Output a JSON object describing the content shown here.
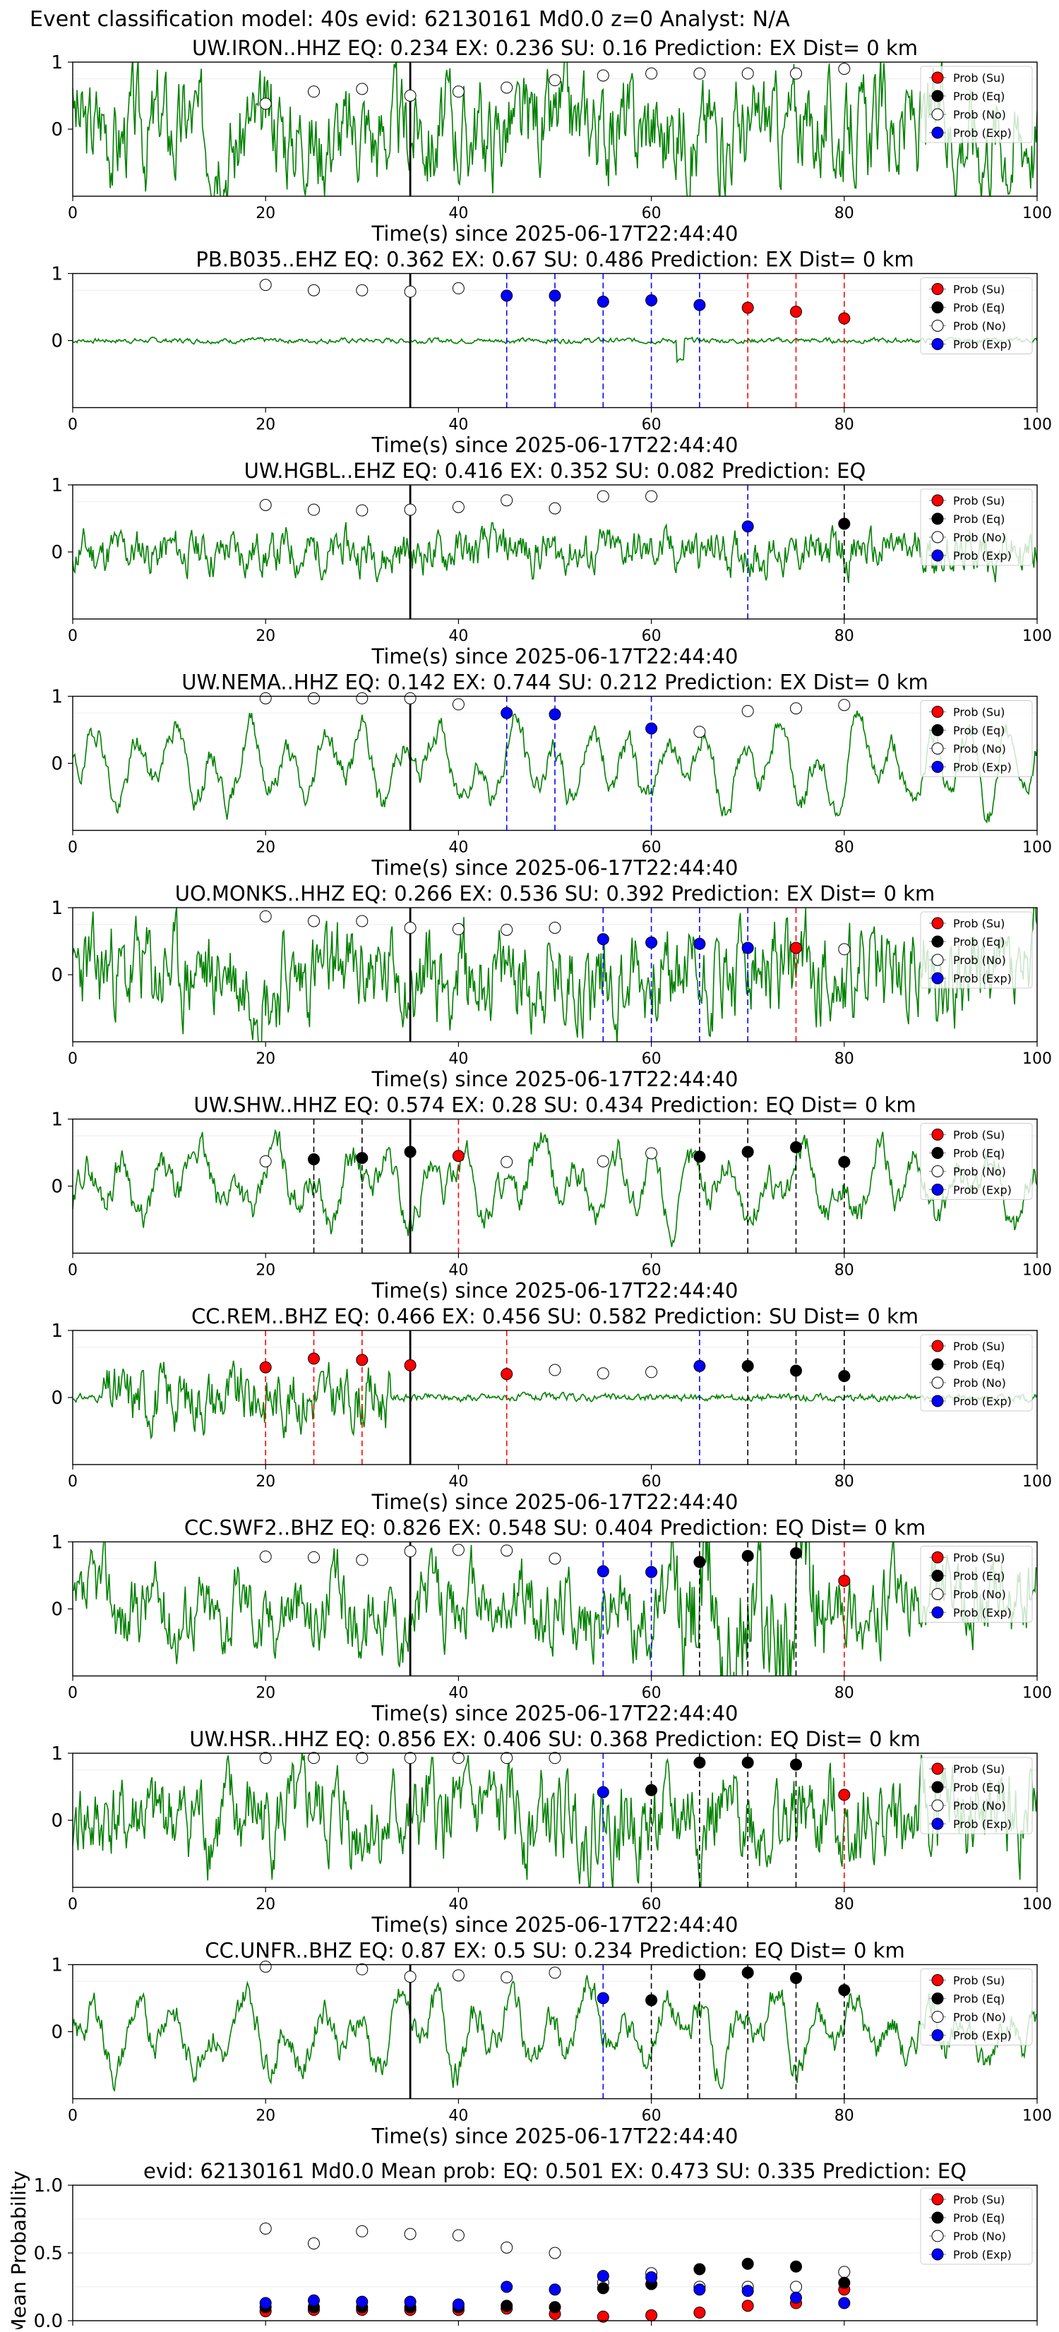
{
  "page_title": "Event classification model: 40s evid: 62130161 Md0.0 z=0 Analyst: N/A",
  "xlabel": "Time(s) since 2025-06-17T22:44:40",
  "legend": [
    "Prob (Su)",
    "Prob (Eq)",
    "Prob (No)",
    "Prob (Exp)"
  ],
  "colors": {
    "waveform": "#008000",
    "su": "#ff0000",
    "eq": "#000000",
    "no": "#ffffff",
    "exp": "#0000ff",
    "pick": "#000000"
  },
  "chart_data": [
    {
      "type": "line",
      "title": "UW.IRON..HHZ   EQ: 0.234  EX: 0.236  SU: 0.16   Prediction: EX    Dist= 0 km",
      "xlim": [
        0,
        100
      ],
      "ylim": [
        -1,
        1
      ],
      "xticks": [
        0,
        20,
        40,
        60,
        80,
        100
      ],
      "yticks": [
        "1",
        "0"
      ],
      "pick": 35,
      "amp": 0.85,
      "seed": 3,
      "mode": "noisy",
      "x": [
        20,
        25,
        30,
        35,
        40,
        45,
        50,
        55,
        60,
        65,
        70,
        75,
        80
      ],
      "class": [
        "no",
        "no",
        "no",
        "no",
        "no",
        "no",
        "no",
        "no",
        "no",
        "no",
        "no",
        "no",
        "no"
      ],
      "y": [
        0.38,
        0.56,
        0.6,
        0.5,
        0.56,
        0.62,
        0.73,
        0.8,
        0.83,
        0.83,
        0.83,
        0.83,
        0.9
      ],
      "vlines": []
    },
    {
      "type": "line",
      "title": "PB.B035..EHZ   EQ: 0.362  EX: 0.67  SU: 0.486   Prediction: EX    Dist= 0 km",
      "xlim": [
        0,
        100
      ],
      "ylim": [
        -1,
        1
      ],
      "xticks": [
        0,
        20,
        40,
        60,
        80,
        100
      ],
      "yticks": [
        "1",
        "0"
      ],
      "pick": 35,
      "amp": 0.12,
      "seed": 7,
      "mode": "quiet",
      "x": [
        20,
        25,
        30,
        35,
        40,
        45,
        50,
        55,
        60,
        65,
        70,
        75,
        80
      ],
      "class": [
        "no",
        "no",
        "no",
        "no",
        "no",
        "exp",
        "exp",
        "exp",
        "exp",
        "exp",
        "su",
        "su",
        "su"
      ],
      "y": [
        0.83,
        0.75,
        0.75,
        0.73,
        0.78,
        0.67,
        0.67,
        0.58,
        0.6,
        0.53,
        0.49,
        0.43,
        0.33
      ],
      "vlines": [
        {
          "x": 45,
          "c": "exp"
        },
        {
          "x": 50,
          "c": "exp"
        },
        {
          "x": 55,
          "c": "exp"
        },
        {
          "x": 60,
          "c": "exp"
        },
        {
          "x": 65,
          "c": "exp"
        },
        {
          "x": 70,
          "c": "su"
        },
        {
          "x": 75,
          "c": "su"
        },
        {
          "x": 80,
          "c": "su"
        }
      ]
    },
    {
      "type": "line",
      "title": "UW.HGBL..EHZ   EQ: 0.416  EX: 0.352  SU: 0.082   Prediction: EQ",
      "xlim": [
        0,
        100
      ],
      "ylim": [
        -1,
        1
      ],
      "xticks": [
        0,
        20,
        40,
        60,
        80,
        100
      ],
      "yticks": [
        "1",
        "0"
      ],
      "pick": 35,
      "amp": 0.35,
      "seed": 11,
      "mode": "noisy",
      "x": [
        20,
        25,
        30,
        35,
        40,
        45,
        50,
        55,
        60,
        70,
        80
      ],
      "class": [
        "no",
        "no",
        "no",
        "no",
        "no",
        "no",
        "no",
        "no",
        "no",
        "exp",
        "eq"
      ],
      "y": [
        0.7,
        0.63,
        0.62,
        0.63,
        0.67,
        0.77,
        0.65,
        0.83,
        0.83,
        0.38,
        0.42
      ],
      "vlines": [
        {
          "x": 70,
          "c": "exp"
        },
        {
          "x": 80,
          "c": "eq"
        }
      ]
    },
    {
      "type": "line",
      "title": "UW.NEMA..HHZ   EQ: 0.142  EX: 0.744  SU: 0.212   Prediction: EX    Dist= 0 km",
      "xlim": [
        0,
        100
      ],
      "ylim": [
        -1,
        1
      ],
      "xticks": [
        0,
        20,
        40,
        60,
        80,
        100
      ],
      "yticks": [
        "1",
        "0"
      ],
      "pick": 35,
      "amp": 0.9,
      "seed": 19,
      "mode": "smooth",
      "x": [
        20,
        25,
        30,
        35,
        40,
        45,
        50,
        60,
        65,
        70,
        75,
        80
      ],
      "class": [
        "no",
        "no",
        "no",
        "no",
        "no",
        "exp",
        "exp",
        "exp",
        "no",
        "no",
        "no",
        "no"
      ],
      "y": [
        0.97,
        0.97,
        0.97,
        0.97,
        0.88,
        0.75,
        0.73,
        0.52,
        0.47,
        0.78,
        0.82,
        0.87
      ],
      "vlines": [
        {
          "x": 45,
          "c": "exp"
        },
        {
          "x": 50,
          "c": "exp"
        },
        {
          "x": 60,
          "c": "exp"
        }
      ]
    },
    {
      "type": "line",
      "title": "UO.MONKS..HHZ   EQ: 0.266  EX: 0.536  SU: 0.392   Prediction: EX    Dist= 0 km",
      "xlim": [
        0,
        100
      ],
      "ylim": [
        -1,
        1
      ],
      "xticks": [
        0,
        20,
        40,
        60,
        80,
        100
      ],
      "yticks": [
        "1",
        "0"
      ],
      "pick": 35,
      "amp": 0.8,
      "seed": 23,
      "mode": "noisy",
      "x": [
        20,
        25,
        30,
        35,
        40,
        45,
        50,
        55,
        60,
        65,
        70,
        75,
        80
      ],
      "class": [
        "no",
        "no",
        "no",
        "no",
        "no",
        "no",
        "no",
        "exp",
        "exp",
        "exp",
        "exp",
        "su",
        "no"
      ],
      "y": [
        0.87,
        0.8,
        0.8,
        0.7,
        0.68,
        0.67,
        0.7,
        0.53,
        0.48,
        0.46,
        0.4,
        0.4,
        0.38
      ],
      "vlines": [
        {
          "x": 55,
          "c": "exp"
        },
        {
          "x": 60,
          "c": "exp"
        },
        {
          "x": 65,
          "c": "exp"
        },
        {
          "x": 70,
          "c": "exp"
        },
        {
          "x": 75,
          "c": "su"
        }
      ]
    },
    {
      "type": "line",
      "title": "UW.SHW..HHZ   EQ: 0.574  EX: 0.28  SU: 0.434   Prediction: EQ    Dist= 0 km",
      "xlim": [
        0,
        100
      ],
      "ylim": [
        -1,
        1
      ],
      "xticks": [
        0,
        20,
        40,
        60,
        80,
        100
      ],
      "yticks": [
        "1",
        "0"
      ],
      "pick": 35,
      "amp": 0.75,
      "seed": 29,
      "mode": "smooth2",
      "x": [
        20,
        25,
        30,
        35,
        40,
        45,
        55,
        60,
        65,
        70,
        75,
        80
      ],
      "class": [
        "no",
        "eq",
        "eq",
        "eq",
        "su",
        "no",
        "no",
        "no",
        "eq",
        "eq",
        "eq",
        "eq"
      ],
      "y": [
        0.37,
        0.4,
        0.42,
        0.51,
        0.45,
        0.36,
        0.37,
        0.49,
        0.44,
        0.51,
        0.58,
        0.36
      ],
      "vlines": [
        {
          "x": 25,
          "c": "eq"
        },
        {
          "x": 30,
          "c": "eq"
        },
        {
          "x": 40,
          "c": "su"
        },
        {
          "x": 65,
          "c": "eq"
        },
        {
          "x": 70,
          "c": "eq"
        },
        {
          "x": 75,
          "c": "eq"
        },
        {
          "x": 80,
          "c": "eq"
        }
      ]
    },
    {
      "type": "line",
      "title": "CC.REM..BHZ   EQ: 0.466  EX: 0.456  SU: 0.582   Prediction: SU    Dist= 0 km",
      "xlim": [
        0,
        100
      ],
      "ylim": [
        -1,
        1
      ],
      "xticks": [
        0,
        20,
        40,
        60,
        80,
        100
      ],
      "yticks": [
        "1",
        "0"
      ],
      "pick": 35,
      "amp": 0.55,
      "seed": 31,
      "mode": "burst",
      "x": [
        20,
        25,
        30,
        35,
        45,
        50,
        55,
        60,
        65,
        70,
        75,
        80
      ],
      "class": [
        "su",
        "su",
        "su",
        "su",
        "su",
        "no",
        "no",
        "no",
        "exp",
        "eq",
        "eq",
        "eq"
      ],
      "y": [
        0.45,
        0.58,
        0.56,
        0.48,
        0.35,
        0.41,
        0.36,
        0.38,
        0.47,
        0.47,
        0.4,
        0.32
      ],
      "vlines": [
        {
          "x": 20,
          "c": "su"
        },
        {
          "x": 25,
          "c": "su"
        },
        {
          "x": 30,
          "c": "su"
        },
        {
          "x": 45,
          "c": "su"
        },
        {
          "x": 65,
          "c": "exp"
        },
        {
          "x": 70,
          "c": "eq"
        },
        {
          "x": 75,
          "c": "eq"
        },
        {
          "x": 80,
          "c": "eq"
        }
      ]
    },
    {
      "type": "line",
      "title": "CC.SWF2..BHZ   EQ: 0.826  EX: 0.548  SU: 0.404   Prediction: EQ    Dist= 0 km",
      "xlim": [
        0,
        100
      ],
      "ylim": [
        -1,
        1
      ],
      "xticks": [
        0,
        20,
        40,
        60,
        80,
        100
      ],
      "yticks": [
        "1",
        "0"
      ],
      "pick": 35,
      "amp": 0.8,
      "seed": 37,
      "mode": "grow",
      "x": [
        20,
        25,
        30,
        35,
        40,
        45,
        50,
        55,
        60,
        65,
        70,
        75,
        80
      ],
      "class": [
        "no",
        "no",
        "no",
        "no",
        "no",
        "no",
        "no",
        "exp",
        "exp",
        "eq",
        "eq",
        "eq",
        "su"
      ],
      "y": [
        0.78,
        0.77,
        0.73,
        0.86,
        0.88,
        0.87,
        0.75,
        0.56,
        0.55,
        0.7,
        0.79,
        0.83,
        0.42
      ],
      "vlines": [
        {
          "x": 55,
          "c": "exp"
        },
        {
          "x": 60,
          "c": "exp"
        },
        {
          "x": 65,
          "c": "eq"
        },
        {
          "x": 70,
          "c": "eq"
        },
        {
          "x": 75,
          "c": "eq"
        },
        {
          "x": 80,
          "c": "su"
        }
      ]
    },
    {
      "type": "line",
      "title": "UW.HSR..HHZ   EQ: 0.856  EX: 0.406  SU: 0.368   Prediction: EQ    Dist= 0 km",
      "xlim": [
        0,
        100
      ],
      "ylim": [
        -1,
        1
      ],
      "xticks": [
        0,
        20,
        40,
        60,
        80,
        100
      ],
      "yticks": [
        "1",
        "0"
      ],
      "pick": 35,
      "amp": 0.75,
      "seed": 41,
      "mode": "noisy",
      "x": [
        20,
        25,
        30,
        35,
        40,
        45,
        50,
        55,
        60,
        65,
        70,
        75,
        80
      ],
      "class": [
        "no",
        "no",
        "no",
        "no",
        "no",
        "no",
        "no",
        "exp",
        "eq",
        "eq",
        "eq",
        "eq",
        "su"
      ],
      "y": [
        0.93,
        0.93,
        0.93,
        0.93,
        0.93,
        0.93,
        0.93,
        0.42,
        0.45,
        0.86,
        0.86,
        0.83,
        0.38
      ],
      "vlines": [
        {
          "x": 55,
          "c": "exp"
        },
        {
          "x": 60,
          "c": "eq"
        },
        {
          "x": 65,
          "c": "eq"
        },
        {
          "x": 70,
          "c": "eq"
        },
        {
          "x": 75,
          "c": "eq"
        },
        {
          "x": 80,
          "c": "su"
        }
      ]
    },
    {
      "type": "line",
      "title": "CC.UNFR..BHZ   EQ: 0.87  EX: 0.5  SU: 0.234   Prediction: EQ    Dist= 0 km",
      "xlim": [
        0,
        100
      ],
      "ylim": [
        -1,
        1
      ],
      "xticks": [
        0,
        20,
        40,
        60,
        80,
        100
      ],
      "yticks": [
        "1",
        "0"
      ],
      "pick": 35,
      "amp": 0.75,
      "seed": 43,
      "mode": "smooth2",
      "x": [
        20,
        30,
        35,
        40,
        45,
        50,
        55,
        60,
        65,
        70,
        75,
        80
      ],
      "class": [
        "no",
        "no",
        "no",
        "no",
        "no",
        "no",
        "exp",
        "eq",
        "eq",
        "eq",
        "eq",
        "eq"
      ],
      "y": [
        0.97,
        0.93,
        0.82,
        0.84,
        0.81,
        0.88,
        0.5,
        0.47,
        0.85,
        0.88,
        0.8,
        0.62
      ],
      "vlines": [
        {
          "x": 55,
          "c": "exp"
        },
        {
          "x": 60,
          "c": "eq"
        },
        {
          "x": 65,
          "c": "eq"
        },
        {
          "x": 70,
          "c": "eq"
        },
        {
          "x": 75,
          "c": "eq"
        },
        {
          "x": 80,
          "c": "eq"
        }
      ]
    },
    {
      "type": "scatter",
      "title": "evid: 62130161  Md0.0   Mean prob:   EQ: 0.501  EX: 0.473  SU: 0.335   Prediction: EQ",
      "ylabel": "Mean Probability",
      "xlim": [
        0,
        100
      ],
      "ylim": [
        0,
        1
      ],
      "xticks": [
        0,
        20,
        40,
        60,
        80,
        100
      ],
      "yticks": [
        "0.0",
        "0.5",
        "1.0"
      ],
      "x": [
        20,
        25,
        30,
        35,
        40,
        45,
        50,
        55,
        60,
        65,
        70,
        75,
        80
      ],
      "series": [
        {
          "class": "no",
          "values": [
            0.68,
            0.57,
            0.66,
            0.64,
            0.63,
            0.54,
            0.5,
            0.28,
            0.35,
            0.25,
            0.25,
            0.25,
            0.36
          ]
        },
        {
          "class": "su",
          "values": [
            0.07,
            0.08,
            0.08,
            0.08,
            0.08,
            0.09,
            0.05,
            0.03,
            0.04,
            0.06,
            0.11,
            0.13,
            0.23
          ]
        },
        {
          "class": "eq",
          "values": [
            0.1,
            0.1,
            0.1,
            0.1,
            0.1,
            0.11,
            0.1,
            0.24,
            0.27,
            0.38,
            0.42,
            0.4,
            0.28
          ]
        },
        {
          "class": "exp",
          "values": [
            0.13,
            0.15,
            0.14,
            0.14,
            0.12,
            0.25,
            0.23,
            0.33,
            0.32,
            0.23,
            0.22,
            0.17,
            0.13
          ]
        }
      ]
    }
  ]
}
